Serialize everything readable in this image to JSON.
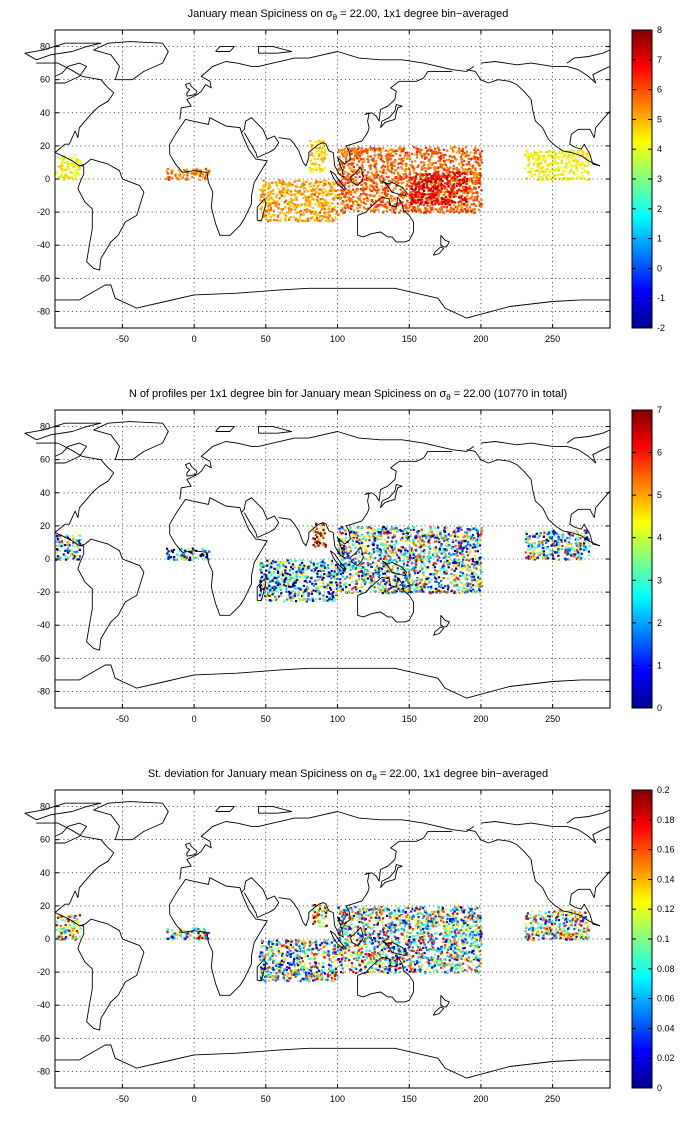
{
  "chart_data": [
    {
      "type": "heatmap",
      "title_parts": [
        "January mean Spiciness on ",
        "σ",
        "θ",
        " = 22.00, 1x1 degree bin−averaged"
      ],
      "x_ticks": [
        "-50",
        "0",
        "50",
        "100",
        "150",
        "200",
        "250"
      ],
      "y_ticks": [
        "80",
        "60",
        "40",
        "20",
        "0",
        "-20",
        "-40",
        "-60",
        "-80"
      ],
      "xlim": [
        -97,
        290
      ],
      "ylim": [
        -90,
        90
      ],
      "colorbar": {
        "min": -2,
        "max": 8,
        "ticks": [
          "8",
          "7",
          "6",
          "5",
          "4",
          "3",
          "2",
          "1",
          "0",
          "-1",
          "-2"
        ]
      },
      "regions": [
        {
          "lon": [
            -97,
            -80
          ],
          "lat": [
            0,
            15
          ],
          "value": 4.2
        },
        {
          "lon": [
            -20,
            10
          ],
          "lat": [
            0,
            7
          ],
          "value": 5.6
        },
        {
          "lon": [
            45,
            100
          ],
          "lat": [
            -25,
            0
          ],
          "value": 5.2
        },
        {
          "lon": [
            80,
            92
          ],
          "lat": [
            5,
            24
          ],
          "value": 4.6
        },
        {
          "lon": [
            100,
            200
          ],
          "lat": [
            -20,
            20
          ],
          "value": 5.8
        },
        {
          "lon": [
            150,
            190
          ],
          "lat": [
            -15,
            5
          ],
          "value": 7.0
        },
        {
          "lon": [
            230,
            275
          ],
          "lat": [
            0,
            18
          ],
          "value": 4.2
        }
      ]
    },
    {
      "type": "heatmap",
      "title_parts": [
        "N of profiles per 1x1 degree bin for January mean Spiciness on ",
        "σ",
        "θ",
        " = 22.00 (10770 in total)"
      ],
      "x_ticks": [
        "-50",
        "0",
        "50",
        "100",
        "150",
        "200",
        "250"
      ],
      "y_ticks": [
        "80",
        "60",
        "40",
        "20",
        "0",
        "-20",
        "-40",
        "-60",
        "-80"
      ],
      "xlim": [
        -97,
        290
      ],
      "ylim": [
        -90,
        90
      ],
      "colorbar": {
        "min": 0,
        "max": 7,
        "ticks": [
          "7",
          "6",
          "5",
          "4",
          "3",
          "2",
          "1",
          "0"
        ]
      },
      "regions": [
        {
          "lon": [
            -97,
            -80
          ],
          "lat": [
            0,
            15
          ],
          "value": 2.5
        },
        {
          "lon": [
            -20,
            10
          ],
          "lat": [
            0,
            7
          ],
          "value": 2.0
        },
        {
          "lon": [
            45,
            100
          ],
          "lat": [
            -25,
            0
          ],
          "value": 2.0
        },
        {
          "lon": [
            82,
            92
          ],
          "lat": [
            8,
            22
          ],
          "value": 6.5
        },
        {
          "lon": [
            100,
            200
          ],
          "lat": [
            -20,
            20
          ],
          "value": 3.0
        },
        {
          "lon": [
            230,
            275
          ],
          "lat": [
            0,
            18
          ],
          "value": 3.0
        }
      ]
    },
    {
      "type": "heatmap",
      "title_parts": [
        "St. deviation for January mean Spiciness on ",
        "σ",
        "θ",
        " = 22.00, 1x1 degree bin−averaged"
      ],
      "x_ticks": [
        "-50",
        "0",
        "50",
        "100",
        "150",
        "200",
        "250"
      ],
      "y_ticks": [
        "80",
        "60",
        "40",
        "20",
        "0",
        "-20",
        "-40",
        "-60",
        "-80"
      ],
      "xlim": [
        -97,
        290
      ],
      "ylim": [
        -90,
        90
      ],
      "colorbar": {
        "min": 0,
        "max": 0.2,
        "ticks": [
          "0.2",
          "0.18",
          "0.16",
          "0.14",
          "0.12",
          "0.1",
          "0.08",
          "0.06",
          "0.04",
          "0.02",
          "0"
        ]
      },
      "regions": [
        {
          "lon": [
            -97,
            -80
          ],
          "lat": [
            0,
            15
          ],
          "value": 0.12
        },
        {
          "lon": [
            -20,
            10
          ],
          "lat": [
            0,
            7
          ],
          "value": 0.1
        },
        {
          "lon": [
            45,
            100
          ],
          "lat": [
            -25,
            0
          ],
          "value": 0.09
        },
        {
          "lon": [
            82,
            92
          ],
          "lat": [
            8,
            22
          ],
          "value": 0.16
        },
        {
          "lon": [
            100,
            200
          ],
          "lat": [
            -20,
            20
          ],
          "value": 0.1
        },
        {
          "lon": [
            230,
            275
          ],
          "lat": [
            0,
            18
          ],
          "value": 0.11
        }
      ]
    }
  ]
}
